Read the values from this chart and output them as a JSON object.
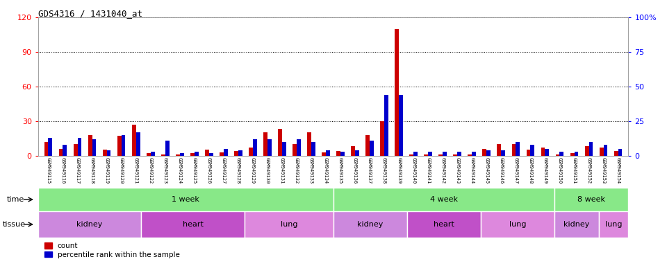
{
  "title": "GDS4316 / 1431040_at",
  "samples": [
    "GSM949115",
    "GSM949116",
    "GSM949117",
    "GSM949118",
    "GSM949119",
    "GSM949120",
    "GSM949121",
    "GSM949122",
    "GSM949123",
    "GSM949124",
    "GSM949125",
    "GSM949126",
    "GSM949127",
    "GSM949128",
    "GSM949129",
    "GSM949130",
    "GSM949131",
    "GSM949132",
    "GSM949133",
    "GSM949134",
    "GSM949135",
    "GSM949136",
    "GSM949137",
    "GSM949138",
    "GSM949139",
    "GSM949140",
    "GSM949141",
    "GSM949142",
    "GSM949143",
    "GSM949144",
    "GSM949145",
    "GSM949146",
    "GSM949147",
    "GSM949148",
    "GSM949149",
    "GSM949150",
    "GSM949151",
    "GSM949152",
    "GSM949153",
    "GSM949154"
  ],
  "count": [
    12,
    6,
    10,
    18,
    5,
    17,
    27,
    2,
    1,
    1,
    2,
    5,
    3,
    4,
    7,
    20,
    23,
    10,
    20,
    3,
    4,
    8,
    18,
    30,
    110,
    1,
    1,
    1,
    1,
    1,
    6,
    10,
    10,
    5,
    7,
    1,
    2,
    8,
    7,
    4
  ],
  "percentile": [
    13,
    8,
    13,
    12,
    4,
    15,
    17,
    3,
    11,
    2,
    3,
    2,
    5,
    4,
    12,
    12,
    10,
    12,
    10,
    4,
    3,
    4,
    11,
    44,
    44,
    3,
    3,
    3,
    3,
    3,
    4,
    4,
    10,
    8,
    5,
    3,
    3,
    10,
    8,
    5
  ],
  "time_groups": [
    {
      "label": "1 week",
      "start": 0,
      "end": 19
    },
    {
      "label": "4 week",
      "start": 20,
      "end": 34
    },
    {
      "label": "8 week",
      "start": 35,
      "end": 39
    }
  ],
  "tissue_groups": [
    {
      "label": "kidney",
      "start": 0,
      "end": 6,
      "color": "#cc88dd"
    },
    {
      "label": "heart",
      "start": 7,
      "end": 13,
      "color": "#c050c8"
    },
    {
      "label": "lung",
      "start": 14,
      "end": 19,
      "color": "#dd88dd"
    },
    {
      "label": "kidney",
      "start": 20,
      "end": 24,
      "color": "#cc88dd"
    },
    {
      "label": "heart",
      "start": 25,
      "end": 29,
      "color": "#c050c8"
    },
    {
      "label": "lung",
      "start": 30,
      "end": 34,
      "color": "#dd88dd"
    },
    {
      "label": "kidney",
      "start": 35,
      "end": 37,
      "color": "#cc88dd"
    },
    {
      "label": "lung",
      "start": 38,
      "end": 39,
      "color": "#dd88dd"
    }
  ],
  "ylim_left": [
    0,
    120
  ],
  "ylim_right": [
    0,
    100
  ],
  "yticks_left": [
    0,
    30,
    60,
    90,
    120
  ],
  "yticks_right": [
    0,
    25,
    50,
    75,
    100
  ],
  "ytick_labels_right": [
    "0",
    "25",
    "50",
    "75",
    "100%"
  ],
  "bar_color_count": "#cc0000",
  "bar_color_pct": "#0000cc",
  "time_color": "#88e888",
  "label_area_color": "#c8c8c8",
  "bar_width": 0.28
}
